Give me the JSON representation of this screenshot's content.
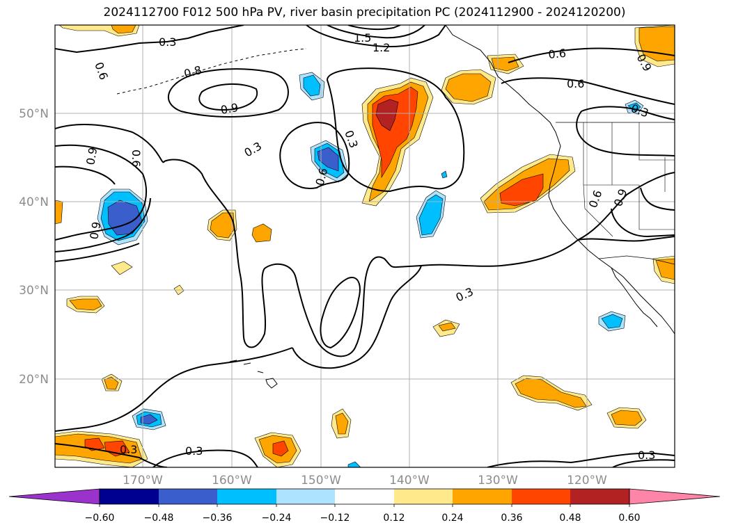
{
  "title": "2024112700 F012 500 hPa PV, river basin precipitation PC (2024112900 - 2024120200)",
  "axes": {
    "lat_labels": [
      "50°N",
      "40°N",
      "30°N",
      "20°N"
    ],
    "lon_labels": [
      "170°W",
      "160°W",
      "150°W",
      "140°W",
      "130°W",
      "120°W"
    ]
  },
  "contour_labels": [
    "0.3",
    "1.5",
    "1.2",
    "0.6",
    "0.8",
    "0.9",
    "0.6",
    "0.9",
    "0.3",
    "0.9",
    "0.3",
    "0.6",
    "0.9",
    "0.6",
    "0.6",
    "0.3",
    "0.6",
    "0.9",
    "0.3",
    "0.3",
    "0.3",
    "0.3"
  ],
  "colorbar": {
    "colors": [
      "#9933cc",
      "#000090",
      "#3a5fcd",
      "#00bfff",
      "#ade3ff",
      "#ffffff",
      "#ffe98a",
      "#ffa500",
      "#ff4500",
      "#b22222",
      "#ff85a8"
    ],
    "ticks": [
      "−0.60",
      "−0.48",
      "−0.36",
      "−0.24",
      "−0.12",
      "0.12",
      "0.24",
      "0.36",
      "0.48",
      "0.60"
    ]
  }
}
